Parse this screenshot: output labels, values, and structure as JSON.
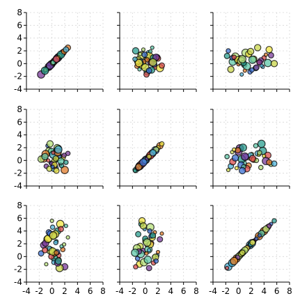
{
  "chart_data": {
    "type": "scatter",
    "layout": "scatter-plot-matrix",
    "rows": 3,
    "cols": 3,
    "grid": true,
    "xlim": [
      -4,
      8
    ],
    "ylim": [
      -4,
      8
    ],
    "x_ticks": [
      "-4",
      "-2",
      "0",
      "2",
      "4",
      "6",
      "8"
    ],
    "y_ticks": [
      "8",
      "6",
      "4",
      "2",
      "0",
      "-2",
      "-4"
    ],
    "variables": {
      "v1": [
        -1.3,
        -0.9,
        -0.5,
        -0.2,
        0.1,
        0.4,
        0.7,
        1.0,
        1.3,
        1.7,
        2.0,
        2.5,
        -1.7,
        -0.7,
        0.3,
        0.9,
        1.5,
        -0.1,
        0.5,
        1.1,
        -1.0,
        0.0,
        0.8,
        1.2,
        -0.4,
        0.2,
        0.6,
        1.4,
        -0.6,
        0.4,
        0.9,
        1.9,
        -0.3,
        0.1,
        0.6,
        1.0,
        2.2,
        -1.1,
        0.2,
        0.7
      ],
      "v2": [
        0.3,
        -0.9,
        1.5,
        -0.4,
        0.8,
        -1.2,
        0.1,
        1.9,
        -0.6,
        0.5,
        -1.5,
        1.1,
        0.2,
        2.3,
        -0.2,
        0.7,
        -0.8,
        1.4,
        -1.1,
        0.4,
        1.0,
        -0.5,
        2.0,
        0.6,
        -1.3,
        0.9,
        1.6,
        -0.1,
        0.0,
        -0.7,
        1.3,
        0.8,
        2.6,
        -1.0,
        0.3,
        1.7,
        -0.3,
        0.6,
        1.2,
        -1.6
      ],
      "v3": [
        1.8,
        -1.2,
        3.8,
        0.9,
        4.6,
        -0.3,
        2.4,
        0.2,
        5.1,
        1.1,
        -1.6,
        3.0,
        0.5,
        2.7,
        -0.9,
        4.0,
        1.6,
        0.0,
        3.5,
        -0.5,
        2.1,
        5.6,
        0.7,
        -1.8,
        1.3,
        3.2,
        -0.1,
        4.3,
        2.8,
        0.4,
        -1.0,
        1.9,
        3.6,
        0.8,
        2.2,
        -0.7,
        4.8,
        1.0,
        3.3,
        0.6
      ]
    },
    "panels": [
      {
        "x": "v1",
        "y": "v1"
      },
      {
        "x": "v2",
        "y": "v1"
      },
      {
        "x": "v3",
        "y": "v1"
      },
      {
        "x": "v1",
        "y": "v2"
      },
      {
        "x": "v2",
        "y": "v2"
      },
      {
        "x": "v3",
        "y": "v2"
      },
      {
        "x": "v1",
        "y": "v3"
      },
      {
        "x": "v2",
        "y": "v3"
      },
      {
        "x": "v3",
        "y": "v3"
      }
    ],
    "point_colors": [
      "#f0e442",
      "#2a9d8f",
      "#3b6fd1",
      "#e07b2a",
      "#5fc7a8",
      "#c9d64a",
      "#7a3b9a",
      "#d94c4c",
      "#4fb3d9",
      "#b7e07a"
    ]
  }
}
